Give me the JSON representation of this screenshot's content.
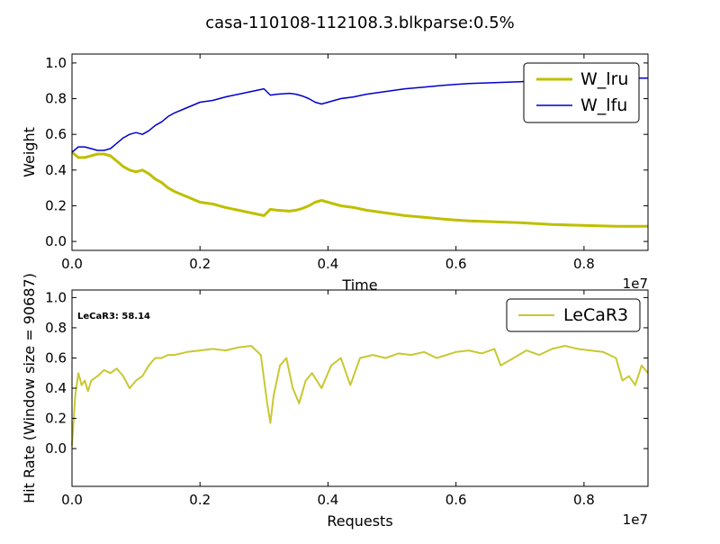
{
  "figure": {
    "title": "casa-110108-112108.3.blkparse:0.5%"
  },
  "chart_data": [
    {
      "type": "line",
      "xlabel": "Time",
      "ylabel": "Weight",
      "x_offset_label": "1e7",
      "xlim": [
        0,
        9000000
      ],
      "ylim": [
        -0.05,
        1.05
      ],
      "x_ticks": [
        0,
        2000000,
        4000000,
        6000000,
        8000000
      ],
      "x_tick_labels": [
        "0.0",
        "0.2",
        "0.4",
        "0.6",
        "0.8"
      ],
      "y_ticks": [
        0,
        0.2,
        0.4,
        0.6,
        0.8,
        1.0
      ],
      "y_tick_labels": [
        "0.0",
        "0.2",
        "0.4",
        "0.6",
        "0.8",
        "1.0"
      ],
      "legend_position": "top-right",
      "series": [
        {
          "name": "W_lru",
          "color": "#bfbf00",
          "x": [
            0,
            100000,
            200000,
            300000,
            400000,
            500000,
            600000,
            700000,
            800000,
            900000,
            1000000,
            1100000,
            1200000,
            1300000,
            1400000,
            1500000,
            1600000,
            1800000,
            2000000,
            2200000,
            2400000,
            2600000,
            2800000,
            3000000,
            3100000,
            3200000,
            3400000,
            3500000,
            3600000,
            3700000,
            3800000,
            3900000,
            4000000,
            4200000,
            4400000,
            4600000,
            4800000,
            5000000,
            5200000,
            5500000,
            5800000,
            6200000,
            6600000,
            7000000,
            7500000,
            8000000,
            8500000,
            9000000
          ],
          "values": [
            0.5,
            0.47,
            0.47,
            0.48,
            0.49,
            0.49,
            0.48,
            0.45,
            0.42,
            0.4,
            0.39,
            0.4,
            0.38,
            0.35,
            0.33,
            0.3,
            0.28,
            0.25,
            0.22,
            0.21,
            0.19,
            0.175,
            0.16,
            0.145,
            0.18,
            0.175,
            0.17,
            0.175,
            0.185,
            0.2,
            0.22,
            0.23,
            0.22,
            0.2,
            0.19,
            0.175,
            0.165,
            0.155,
            0.145,
            0.135,
            0.125,
            0.115,
            0.11,
            0.105,
            0.095,
            0.09,
            0.085,
            0.085
          ]
        },
        {
          "name": "W_lfu",
          "color": "#0000cc",
          "x": [
            0,
            100000,
            200000,
            300000,
            400000,
            500000,
            600000,
            700000,
            800000,
            900000,
            1000000,
            1100000,
            1200000,
            1300000,
            1400000,
            1500000,
            1600000,
            1800000,
            2000000,
            2200000,
            2400000,
            2600000,
            2800000,
            3000000,
            3100000,
            3200000,
            3400000,
            3500000,
            3600000,
            3700000,
            3800000,
            3900000,
            4000000,
            4200000,
            4400000,
            4600000,
            4800000,
            5000000,
            5200000,
            5500000,
            5800000,
            6200000,
            6600000,
            7000000,
            7500000,
            8000000,
            8500000,
            9000000
          ],
          "values": [
            0.5,
            0.53,
            0.53,
            0.52,
            0.51,
            0.51,
            0.52,
            0.55,
            0.58,
            0.6,
            0.61,
            0.6,
            0.62,
            0.65,
            0.67,
            0.7,
            0.72,
            0.75,
            0.78,
            0.79,
            0.81,
            0.825,
            0.84,
            0.855,
            0.82,
            0.825,
            0.83,
            0.825,
            0.815,
            0.8,
            0.78,
            0.77,
            0.78,
            0.8,
            0.81,
            0.825,
            0.835,
            0.845,
            0.855,
            0.865,
            0.875,
            0.885,
            0.89,
            0.895,
            0.905,
            0.91,
            0.915,
            0.915
          ]
        }
      ]
    },
    {
      "type": "line",
      "xlabel": "Requests",
      "ylabel": "Hit Rate (Window size = 90687)",
      "x_offset_label": "1e7",
      "xlim": [
        0,
        9000000
      ],
      "ylim": [
        -0.25,
        1.05
      ],
      "x_ticks": [
        0,
        2000000,
        4000000,
        6000000,
        8000000
      ],
      "x_tick_labels": [
        "0.0",
        "0.2",
        "0.4",
        "0.6",
        "0.8"
      ],
      "y_ticks": [
        0,
        0.2,
        0.4,
        0.6,
        0.8,
        1.0
      ],
      "y_tick_labels": [
        "0.0",
        "0.2",
        "0.4",
        "0.6",
        "0.8",
        "1.0"
      ],
      "legend_position": "top-right",
      "annotation": "LeCaR3:  58.14",
      "series": [
        {
          "name": "LeCaR3",
          "color": "#c8c832",
          "x": [
            0,
            50000,
            100000,
            150000,
            200000,
            250000,
            300000,
            400000,
            500000,
            600000,
            700000,
            800000,
            900000,
            1000000,
            1100000,
            1200000,
            1300000,
            1400000,
            1500000,
            1600000,
            1800000,
            2000000,
            2200000,
            2400000,
            2600000,
            2800000,
            2950000,
            3050000,
            3100000,
            3150000,
            3250000,
            3350000,
            3450000,
            3550000,
            3650000,
            3750000,
            3900000,
            4050000,
            4200000,
            4350000,
            4500000,
            4700000,
            4900000,
            5100000,
            5300000,
            5500000,
            5700000,
            6000000,
            6200000,
            6400000,
            6600000,
            6700000,
            6900000,
            7100000,
            7300000,
            7500000,
            7700000,
            7900000,
            8100000,
            8300000,
            8500000,
            8600000,
            8700000,
            8800000,
            8900000,
            9000000
          ],
          "values": [
            0.02,
            0.35,
            0.5,
            0.42,
            0.45,
            0.38,
            0.45,
            0.48,
            0.52,
            0.5,
            0.53,
            0.48,
            0.4,
            0.45,
            0.48,
            0.55,
            0.6,
            0.6,
            0.62,
            0.62,
            0.64,
            0.65,
            0.66,
            0.65,
            0.67,
            0.68,
            0.62,
            0.3,
            0.17,
            0.35,
            0.55,
            0.6,
            0.4,
            0.3,
            0.45,
            0.5,
            0.4,
            0.55,
            0.6,
            0.42,
            0.6,
            0.62,
            0.6,
            0.63,
            0.62,
            0.64,
            0.6,
            0.64,
            0.65,
            0.63,
            0.66,
            0.55,
            0.6,
            0.65,
            0.62,
            0.66,
            0.68,
            0.66,
            0.65,
            0.64,
            0.6,
            0.45,
            0.48,
            0.42,
            0.55,
            0.5
          ]
        }
      ]
    }
  ]
}
